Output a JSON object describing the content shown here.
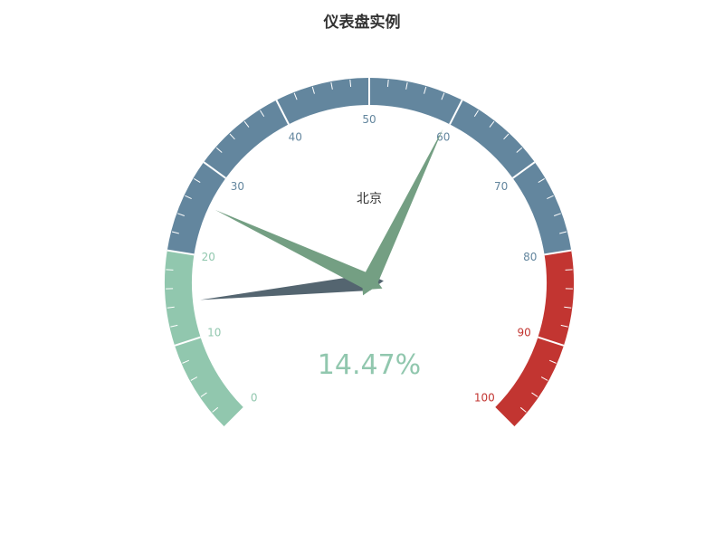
{
  "chart_data": {
    "type": "gauge",
    "title": "仪表盘实例",
    "series_label": "北京",
    "value_text": "14.47%",
    "min": 0,
    "max": 100,
    "split_number": 10,
    "tick_labels": [
      "0",
      "10",
      "20",
      "30",
      "40",
      "50",
      "60",
      "70",
      "80",
      "90",
      "100"
    ],
    "bands": [
      {
        "to": 0.2,
        "color": "#91c7ae"
      },
      {
        "to": 0.8,
        "color": "#63869e"
      },
      {
        "to": 1.0,
        "color": "#c23531"
      }
    ],
    "pointers": [
      {
        "value": 14.47,
        "color": "#546570"
      },
      {
        "value": 26,
        "color": "#749f83"
      },
      {
        "value": 59.5,
        "color": "#749f83"
      }
    ],
    "value_color": "#91c7ae"
  }
}
